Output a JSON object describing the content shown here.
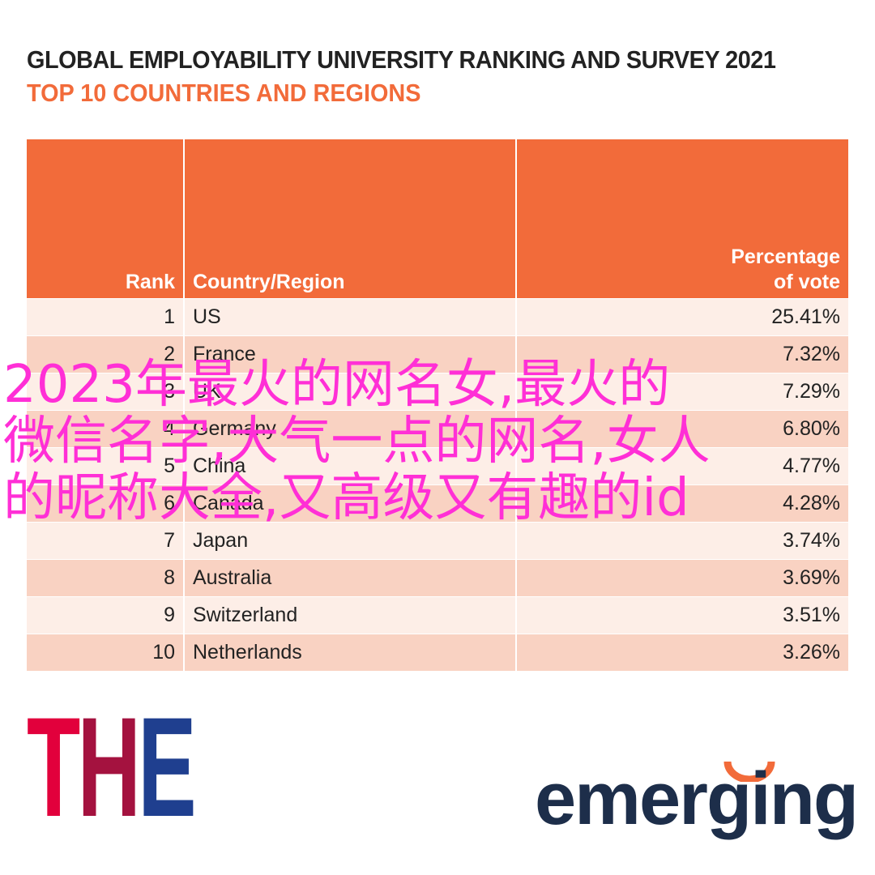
{
  "header": {
    "title": "GLOBAL EMPLOYABILITY UNIVERSITY RANKING AND SURVEY 2021",
    "subtitle": "TOP 10 COUNTRIES AND REGIONS"
  },
  "table": {
    "columns": [
      "Rank",
      "Country/Region",
      "Percentage of vote"
    ],
    "rows": [
      [
        1,
        "US",
        "25.41%"
      ],
      [
        2,
        "France",
        "7.32%"
      ],
      [
        3,
        "UK",
        "7.29%"
      ],
      [
        4,
        "Germany",
        "6.80%"
      ],
      [
        5,
        "China",
        "4.77%"
      ],
      [
        6,
        "Canada",
        "4.28%"
      ],
      [
        7,
        "Japan",
        "3.74%"
      ],
      [
        8,
        "Australia",
        "3.69%"
      ],
      [
        9,
        "Switzerland",
        "3.51%"
      ],
      [
        10,
        "Netherlands",
        "3.26%"
      ]
    ]
  },
  "overlay": {
    "lines": [
      "2023年最火的网名女,最火的",
      "微信名字,大气一点的网名,女人",
      "的昵称大全,又高级又有趣的id"
    ]
  },
  "logos": {
    "the": [
      "T",
      "H",
      "E"
    ],
    "emerging": "emerging"
  }
}
